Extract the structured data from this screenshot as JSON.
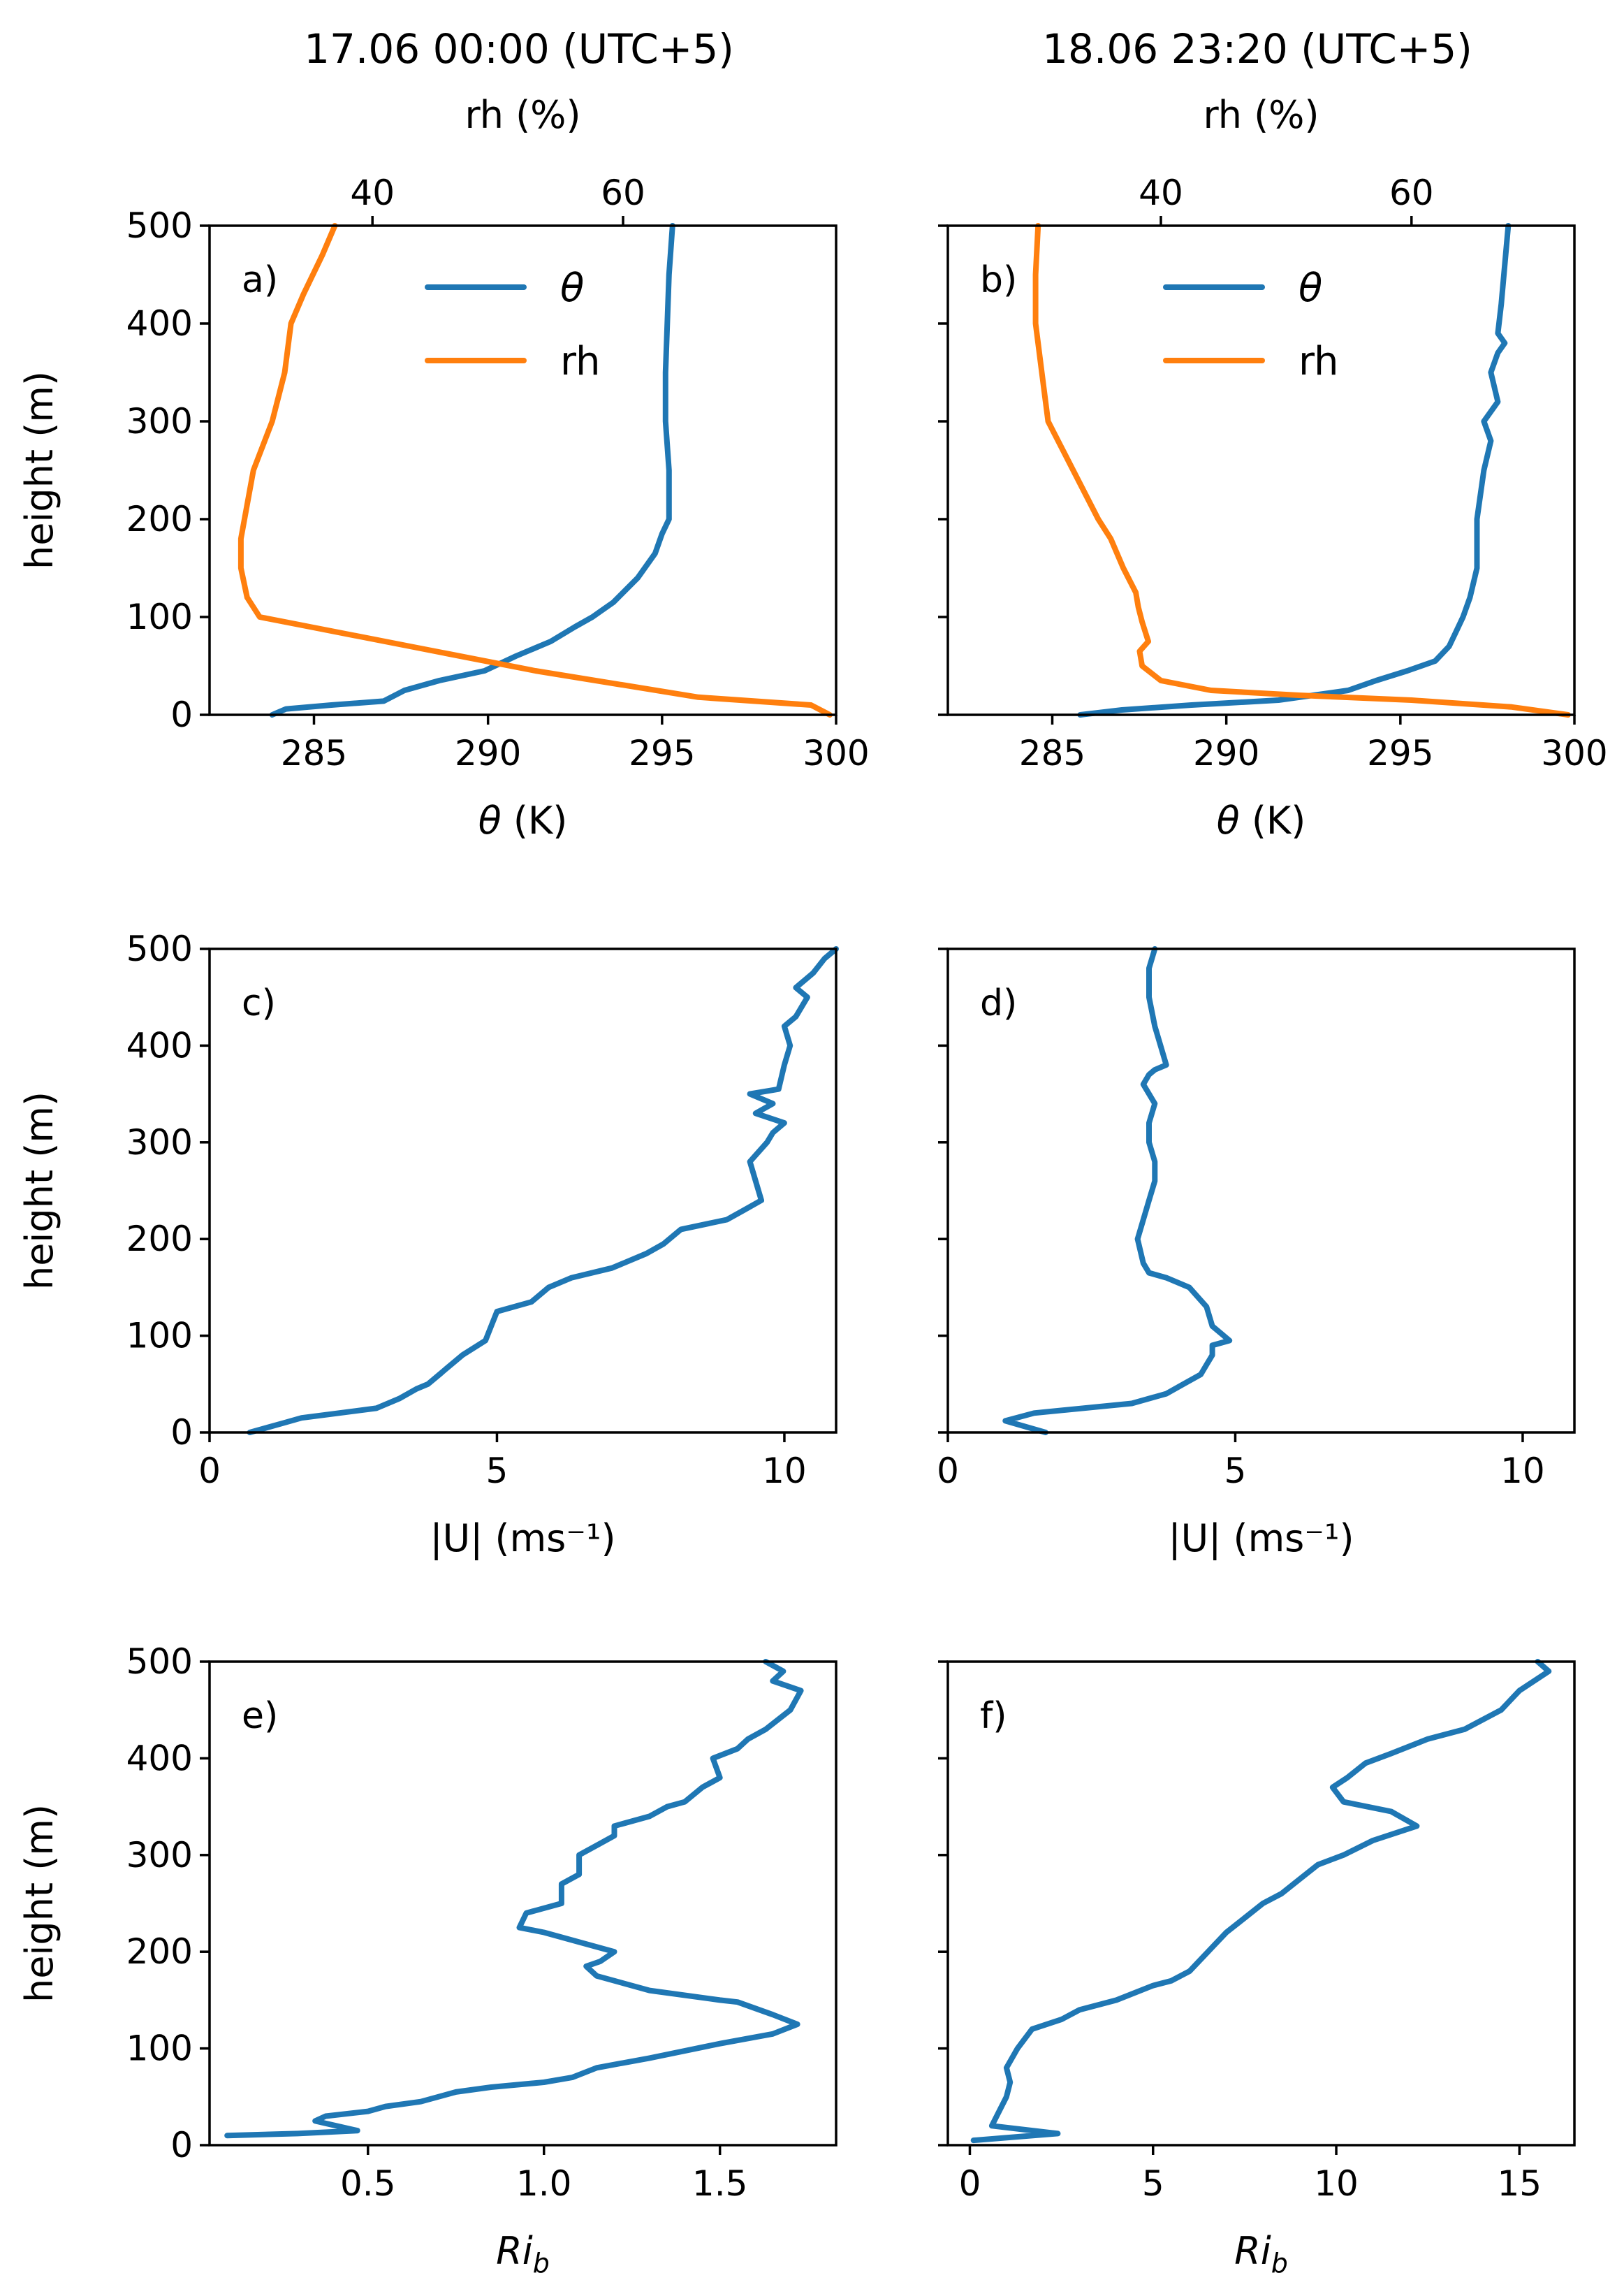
{
  "colors": {
    "theta": "#1f77b4",
    "rh": "#ff7f0e"
  },
  "columns": [
    {
      "title": "17.06 00:00 (UTC+5)"
    },
    {
      "title": "18.06 23:20 (UTC+5)"
    }
  ],
  "chart_data": [
    {
      "id": "a",
      "panel_label": "a)",
      "type": "line",
      "ylim": [
        0,
        500
      ],
      "ylabel": "height (m)",
      "ytick_labels": [
        "0",
        "100",
        "200",
        "300",
        "400",
        "500"
      ],
      "xlabel": "θ (K)",
      "xlim": [
        282,
        300
      ],
      "xtick_labels": [
        "285",
        "290",
        "295",
        "300"
      ],
      "top_xlabel": "rh (%)",
      "top_xlim": [
        27,
        77
      ],
      "top_xtick_labels": [
        "40",
        "60"
      ],
      "legend": {
        "location": "top-center",
        "entries": [
          "θ",
          "rh"
        ]
      },
      "series": [
        {
          "name": "θ",
          "axis": "bottom",
          "x": [
            283.8,
            284.2,
            285.5,
            287.0,
            287.6,
            288.6,
            289.9,
            290.8,
            291.8,
            292.5,
            293.0,
            293.2,
            293.6,
            294.3,
            294.8,
            295.0,
            295.2,
            295.2,
            295.1,
            295.1,
            295.2,
            295.3
          ],
          "y": [
            0,
            6,
            10,
            14,
            25,
            35,
            45,
            60,
            75,
            90,
            100,
            105,
            115,
            140,
            165,
            185,
            200,
            250,
            300,
            350,
            450,
            500
          ]
        },
        {
          "name": "rh",
          "axis": "top",
          "x": [
            76.5,
            75.0,
            66.0,
            53.0,
            43.0,
            35.0,
            31.0,
            30.0,
            29.5,
            29.5,
            30.5,
            32.0,
            33.0,
            33.5,
            34.5,
            36.0,
            37.0
          ],
          "y": [
            0,
            10,
            18,
            45,
            70,
            90,
            100,
            120,
            150,
            180,
            250,
            300,
            350,
            400,
            430,
            470,
            500
          ]
        }
      ]
    },
    {
      "id": "b",
      "panel_label": "b)",
      "type": "line",
      "ylim": [
        0,
        500
      ],
      "ylabel": "",
      "ytick_labels": [
        "0",
        "100",
        "200",
        "300",
        "400",
        "500"
      ],
      "xlabel": "θ (K)",
      "xlim": [
        282,
        300
      ],
      "xtick_labels": [
        "285",
        "290",
        "295",
        "300"
      ],
      "top_xlabel": "rh (%)",
      "top_xlim": [
        23,
        73
      ],
      "top_xtick_labels": [
        "40",
        "60"
      ],
      "legend": {
        "location": "top-center",
        "entries": [
          "θ",
          "rh"
        ]
      },
      "series": [
        {
          "name": "θ",
          "axis": "bottom",
          "x": [
            285.8,
            287.0,
            289.0,
            291.5,
            292.5,
            293.5,
            294.3,
            295.2,
            296.0,
            296.4,
            296.6,
            296.8,
            297.0,
            297.2,
            297.2,
            297.4,
            297.6,
            297.4,
            297.8,
            297.6,
            297.8,
            298.0,
            297.8,
            297.9,
            298.0,
            298.1
          ],
          "y": [
            0,
            5,
            10,
            15,
            20,
            25,
            35,
            45,
            55,
            70,
            85,
            100,
            120,
            150,
            200,
            250,
            280,
            300,
            320,
            350,
            370,
            380,
            390,
            420,
            460,
            500
          ]
        },
        {
          "name": "rh",
          "axis": "top",
          "x": [
            72.5,
            68.0,
            60.0,
            51.0,
            44.0,
            40.0,
            38.5,
            38.3,
            39.0,
            38.5,
            38.2,
            38.0,
            37.0,
            36.0,
            35.0,
            33.0,
            31.0,
            30.5,
            30.0,
            30.0,
            30.2
          ],
          "y": [
            0,
            8,
            15,
            20,
            25,
            35,
            50,
            65,
            75,
            95,
            110,
            125,
            150,
            180,
            200,
            250,
            300,
            350,
            400,
            450,
            500
          ]
        }
      ]
    },
    {
      "id": "c",
      "panel_label": "c)",
      "type": "line",
      "ylim": [
        0,
        500
      ],
      "ylabel": "height (m)",
      "ytick_labels": [
        "0",
        "100",
        "200",
        "300",
        "400",
        "500"
      ],
      "xlabel": "|U| (ms⁻¹)",
      "xlim": [
        0,
        10.9
      ],
      "xtick_labels": [
        "0",
        "5",
        "10"
      ],
      "series": [
        {
          "name": "|U|",
          "x": [
            0.7,
            1.3,
            1.6,
            2.9,
            3.3,
            3.6,
            3.8,
            4.0,
            4.1,
            4.4,
            4.8,
            4.9,
            5.0,
            5.6,
            5.9,
            6.3,
            7.0,
            7.6,
            7.9,
            8.2,
            9.0,
            9.3,
            9.6,
            9.5,
            9.4,
            9.7,
            9.8,
            10.0,
            9.5,
            9.8,
            9.4,
            9.9,
            10.0,
            10.1,
            10.0,
            10.2,
            10.4,
            10.2,
            10.5,
            10.7,
            10.9
          ],
          "y": [
            0,
            10,
            15,
            25,
            35,
            45,
            50,
            60,
            65,
            80,
            95,
            110,
            125,
            135,
            150,
            160,
            170,
            185,
            195,
            210,
            220,
            230,
            240,
            260,
            280,
            300,
            310,
            320,
            330,
            340,
            350,
            355,
            380,
            400,
            420,
            430,
            450,
            460,
            475,
            490,
            500
          ]
        }
      ]
    },
    {
      "id": "d",
      "panel_label": "d)",
      "type": "line",
      "ylim": [
        0,
        500
      ],
      "ylabel": "",
      "ytick_labels": [
        "0",
        "100",
        "200",
        "300",
        "400",
        "500"
      ],
      "xlabel": "|U| (ms⁻¹)",
      "xlim": [
        0,
        10.9
      ],
      "xtick_labels": [
        "0",
        "5",
        "10"
      ],
      "series": [
        {
          "name": "|U|",
          "x": [
            1.7,
            1.0,
            1.5,
            3.2,
            3.8,
            4.1,
            4.4,
            4.5,
            4.6,
            4.6,
            4.9,
            4.6,
            4.5,
            4.2,
            3.8,
            3.5,
            3.4,
            3.3,
            3.4,
            3.5,
            3.6,
            3.6,
            3.5,
            3.5,
            3.6,
            3.5,
            3.4,
            3.5,
            3.6,
            3.8,
            3.7,
            3.6,
            3.5,
            3.5,
            3.6
          ],
          "y": [
            0,
            12,
            20,
            30,
            40,
            50,
            60,
            70,
            80,
            90,
            95,
            110,
            130,
            150,
            160,
            165,
            175,
            200,
            220,
            240,
            260,
            280,
            300,
            320,
            340,
            350,
            360,
            370,
            375,
            380,
            400,
            420,
            450,
            480,
            500
          ]
        }
      ]
    },
    {
      "id": "e",
      "panel_label": "e)",
      "type": "line",
      "ylim": [
        0,
        500
      ],
      "ylabel": "height (m)",
      "ytick_labels": [
        "0",
        "100",
        "200",
        "300",
        "400",
        "500"
      ],
      "xlabel": "Ri_b",
      "xlim": [
        0.05,
        1.83
      ],
      "xtick_labels": [
        "0.5",
        "1.0",
        "1.5"
      ],
      "series": [
        {
          "name": "Ri_b",
          "x": [
            0.1,
            0.3,
            0.47,
            0.35,
            0.38,
            0.5,
            0.55,
            0.65,
            0.75,
            0.85,
            1.0,
            1.08,
            1.15,
            1.3,
            1.5,
            1.65,
            1.72,
            1.65,
            1.55,
            1.5,
            1.3,
            1.15,
            1.12,
            1.16,
            1.2,
            1.1,
            1.0,
            0.93,
            0.95,
            1.05,
            1.05,
            1.1,
            1.1,
            1.15,
            1.2,
            1.2,
            1.3,
            1.35,
            1.4,
            1.45,
            1.5,
            1.48,
            1.55,
            1.58,
            1.63,
            1.7,
            1.73,
            1.65,
            1.68,
            1.63
          ],
          "y": [
            10,
            12,
            15,
            25,
            30,
            35,
            40,
            45,
            55,
            60,
            65,
            70,
            80,
            90,
            105,
            115,
            125,
            135,
            148,
            150,
            160,
            175,
            185,
            190,
            200,
            210,
            220,
            225,
            240,
            250,
            270,
            280,
            300,
            310,
            320,
            330,
            340,
            350,
            355,
            370,
            380,
            400,
            410,
            420,
            430,
            450,
            470,
            480,
            490,
            500
          ]
        }
      ]
    },
    {
      "id": "f",
      "panel_label": "f)",
      "type": "line",
      "ylim": [
        0,
        500
      ],
      "ylabel": "",
      "ytick_labels": [
        "0",
        "100",
        "200",
        "300",
        "400",
        "500"
      ],
      "xlabel": "Ri_b",
      "xlim": [
        -0.6,
        16.5
      ],
      "xtick_labels": [
        "0",
        "5",
        "10",
        "15"
      ],
      "series": [
        {
          "name": "Ri_b",
          "x": [
            0.1,
            2.4,
            0.6,
            0.8,
            1.0,
            1.1,
            1.0,
            1.3,
            1.7,
            2.5,
            3.0,
            4.0,
            5.0,
            5.5,
            6.0,
            6.5,
            7.0,
            7.5,
            8.0,
            8.5,
            9.0,
            9.5,
            10.2,
            11.0,
            12.2,
            11.5,
            10.2,
            9.9,
            10.3,
            10.8,
            11.5,
            12.5,
            13.5,
            14.5,
            15.0,
            15.8,
            15.5
          ],
          "y": [
            5,
            12,
            20,
            35,
            50,
            65,
            80,
            100,
            120,
            130,
            140,
            150,
            165,
            170,
            180,
            200,
            220,
            235,
            250,
            260,
            275,
            290,
            300,
            315,
            330,
            345,
            355,
            370,
            380,
            395,
            405,
            420,
            430,
            450,
            470,
            490,
            500
          ]
        }
      ]
    }
  ]
}
